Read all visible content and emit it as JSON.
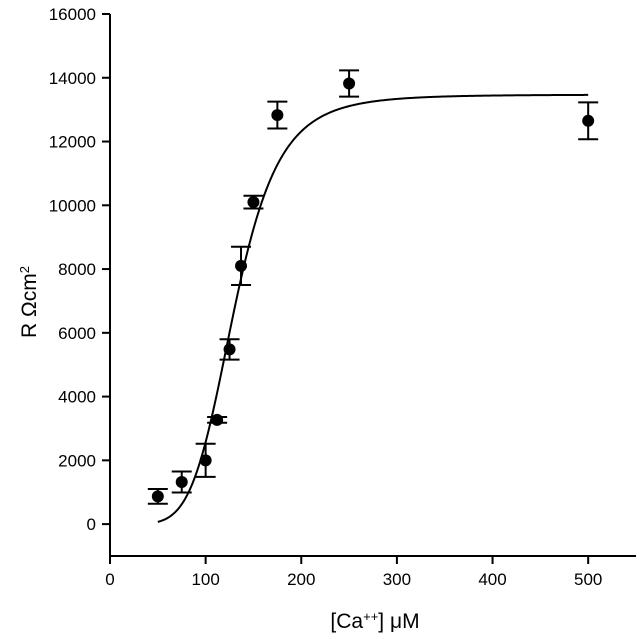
{
  "chart_data": {
    "type": "scatter",
    "xlabel_parts": {
      "open": "[Ca",
      "sup": "++",
      "close": "] μM"
    },
    "ylabel_parts": {
      "main": "R  Ωcm",
      "sup": "2"
    },
    "xlim": [
      0,
      550
    ],
    "ylim": [
      -1000,
      16000
    ],
    "xticks": [
      0,
      100,
      200,
      300,
      400,
      500
    ],
    "yticks": [
      0,
      2000,
      4000,
      6000,
      8000,
      10000,
      12000,
      14000,
      16000
    ],
    "grid": false,
    "points": [
      {
        "x": 50,
        "y": 870,
        "err": 230
      },
      {
        "x": 75,
        "y": 1320,
        "err": 330
      },
      {
        "x": 100,
        "y": 2000,
        "err": 520
      },
      {
        "x": 112,
        "y": 3270,
        "err": 90
      },
      {
        "x": 125,
        "y": 5480,
        "err": 320
      },
      {
        "x": 137,
        "y": 8100,
        "err": 600
      },
      {
        "x": 150,
        "y": 10100,
        "err": 200
      },
      {
        "x": 175,
        "y": 12830,
        "err": 420
      },
      {
        "x": 250,
        "y": 13820,
        "err": 410
      },
      {
        "x": 500,
        "y": 12650,
        "err": 580
      }
    ],
    "fit": {
      "type": "sigmoid",
      "bottom": 0,
      "top": 13470,
      "ec50": 130,
      "hill": 5.5,
      "x_range": [
        50,
        500
      ]
    }
  }
}
